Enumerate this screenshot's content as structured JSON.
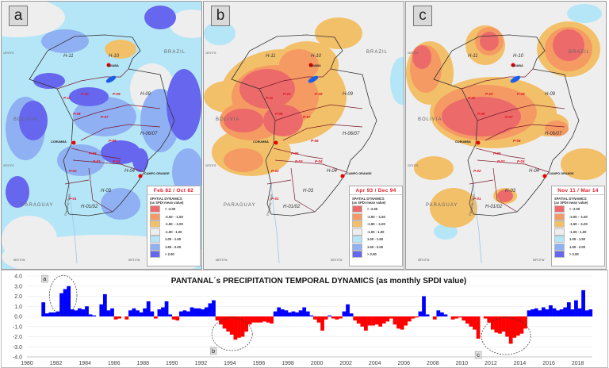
{
  "panels": [
    {
      "tag": "a",
      "period": "Feb 82 / Oct 82"
    },
    {
      "tag": "b",
      "period": "Apr 93 / Dec 94"
    },
    {
      "tag": "c",
      "period": "Nov 11 / Mar 14"
    }
  ],
  "map_labels": {
    "countries": [
      "BRAZIL",
      "BOLIVIA",
      "PARAGUAY"
    ],
    "river": "Paraguay River",
    "cities": [
      "CUIABÁ",
      "CORUMBÁ",
      "CAMPO GRANDE"
    ],
    "hydro_units": [
      "H-11",
      "H-10",
      "H-09",
      "H-06/07",
      "H-04",
      "H-03",
      "H-01/02"
    ],
    "pantanal_units": [
      "P-11",
      "P-10",
      "P-09",
      "P-08",
      "P-07",
      "P-06",
      "P-05",
      "P-04",
      "P-03",
      "P-02",
      "P-01"
    ],
    "coords": [
      "16°0'0\"S",
      "20°0'0\"S",
      "58°0'0\"W",
      "55°0'0\"W"
    ]
  },
  "legend": {
    "heading_line1": "SPATIAL DYNAMICS",
    "heading_line2": "(as SPDI mean value)",
    "classes": [
      {
        "label": "< -2.00",
        "color": "#ec6a6a"
      },
      {
        "label": "-2.00 - -1.50",
        "color": "#f59a62"
      },
      {
        "label": "-1.50 - -1.00",
        "color": "#f3c06a"
      },
      {
        "label": "-1.00 - 1.00",
        "color": "#eeeeee"
      },
      {
        "label": "1.00 - 1.50",
        "color": "#b5e6f7"
      },
      {
        "label": "1.50 - 2.00",
        "color": "#8fb0f3"
      },
      {
        "label": "> 2.00",
        "color": "#6666ee"
      }
    ]
  },
  "chart_data": {
    "type": "bar",
    "title": "PANTANAL´s PRECIPITATION TEMPORAL DYNAMICS (as monthly SPDI value)",
    "xlabel": "",
    "ylabel": "",
    "xlim": [
      1980,
      2019
    ],
    "ylim": [
      -4.0,
      4.0
    ],
    "x_ticks": [
      "1980",
      "1982",
      "1984",
      "1986",
      "1988",
      "1990",
      "1992",
      "1994",
      "1996",
      "1998",
      "2000",
      "2002",
      "2004",
      "2006",
      "2008",
      "2010",
      "2012",
      "2014",
      "2016",
      "2018"
    ],
    "y_ticks": [
      "4.0",
      "3.0",
      "2.0",
      "1.0",
      "0.0",
      "-1.0",
      "-2.0",
      "-3.0",
      "-4.0"
    ],
    "grid": true,
    "positive_color": "#0000ff",
    "negative_color": "#ff0000",
    "start_year": 1981,
    "values_per_year": 4,
    "values": [
      1.4,
      0.3,
      0.4,
      0.4,
      0.5,
      2.3,
      2.7,
      3.0,
      0.7,
      0.6,
      0.8,
      0.7,
      1.0,
      0.2,
      0.1,
      0.0,
      1.2,
      2.2,
      0.6,
      0.8,
      -0.3,
      -0.2,
      0.0,
      -0.3,
      0.6,
      0.8,
      0.6,
      0.4,
      0.8,
      1.5,
      0.5,
      -0.2,
      0.7,
      0.9,
      1.5,
      0.2,
      -0.3,
      -0.4,
      0.5,
      0.6,
      0.5,
      0.9,
      0.8,
      0.8,
      0.7,
      0.9,
      1.3,
      1.6,
      -0.4,
      -0.8,
      -1.2,
      -1.5,
      -1.8,
      -2.3,
      -2.1,
      -2.0,
      -1.5,
      -0.8,
      -0.6,
      -0.6,
      -0.6,
      -0.5,
      -0.6,
      -0.7,
      0.5,
      0.9,
      0.7,
      0.6,
      0.4,
      0.5,
      0.4,
      0.6,
      0.9,
      0.5,
      0.1,
      -0.3,
      -0.6,
      -1.4,
      -0.3,
      0.1,
      -0.2,
      -0.3,
      -0.2,
      0.5,
      1.2,
      0.3,
      -0.4,
      -0.7,
      -1.0,
      -1.4,
      -0.9,
      -0.9,
      -0.8,
      -1.0,
      -0.7,
      -0.5,
      -0.2,
      -0.8,
      -1.2,
      -1.3,
      -0.9,
      -0.5,
      -0.2,
      -0.1,
      0.5,
      2.0,
      0.2,
      0.0,
      -0.3,
      0.6,
      0.4,
      0.2,
      0.0,
      -0.3,
      -0.2,
      -0.1,
      -0.4,
      -0.7,
      -1.0,
      -1.3,
      -2.2,
      0.0,
      -0.2,
      -0.6,
      -1.3,
      -1.6,
      -1.7,
      -1.5,
      -2.0,
      -2.7,
      -2.1,
      -1.9,
      -1.7,
      -1.2,
      0.6,
      0.7,
      0.8,
      0.6,
      0.9,
      0.7,
      1.1,
      0.8,
      0.6,
      0.7,
      0.9,
      1.4,
      0.7,
      1.6,
      0.8,
      2.6,
      0.6,
      0.7
    ],
    "annotations": [
      {
        "label": "a",
        "period": [
          1982.1,
          1982.9
        ]
      },
      {
        "label": "b",
        "period": [
          1993.3,
          1995.0
        ]
      },
      {
        "label": "c",
        "period": [
          2011.9,
          2014.2
        ]
      }
    ]
  }
}
